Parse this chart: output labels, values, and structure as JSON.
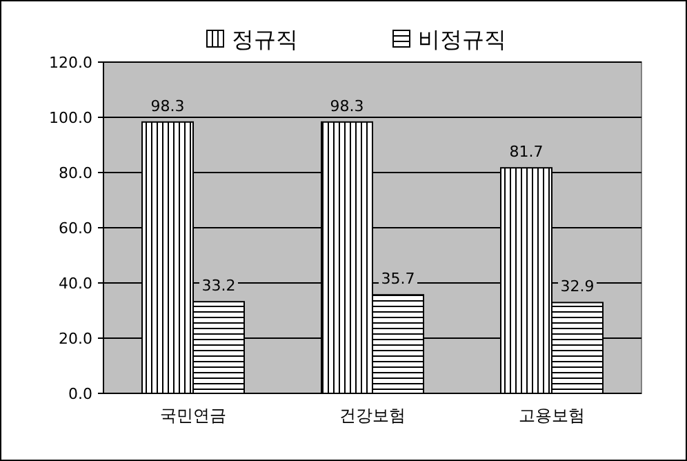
{
  "chart_data": {
    "type": "bar",
    "categories": [
      "국민연금",
      "건강보험",
      "고용보험"
    ],
    "series": [
      {
        "name": "정규직",
        "color": "#000000",
        "values": [
          98.3,
          98.3,
          81.7
        ]
      },
      {
        "name": "비정규직",
        "color": "#000000",
        "values": [
          33.2,
          35.7,
          32.9
        ]
      }
    ],
    "ylim": [
      0,
      120
    ],
    "yticks": [
      {
        "value": 0,
        "label": "0.0"
      },
      {
        "value": 20,
        "label": "20.0"
      },
      {
        "value": 40,
        "label": "40.0"
      },
      {
        "value": 60,
        "label": "60.0"
      },
      {
        "value": 80,
        "label": "80.0"
      },
      {
        "value": 100,
        "label": "100.0"
      },
      {
        "value": 120,
        "label": "120.0"
      }
    ],
    "grid": "y",
    "legend": "top",
    "data_labels": true
  }
}
